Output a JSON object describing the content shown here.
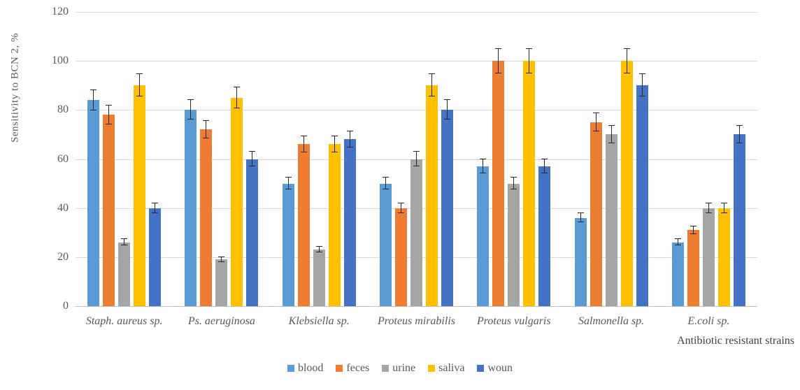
{
  "chart_data": {
    "type": "bar",
    "title": "",
    "ylabel": "Sensitivity to BCN  2, %",
    "xlabel": "Antibiotic resistant strains",
    "ylim": [
      0,
      120
    ],
    "yticks": [
      0,
      20,
      40,
      60,
      80,
      100,
      120
    ],
    "grid": true,
    "legend_position": "bottom",
    "error_bars": {
      "type": "percent",
      "value": 5
    },
    "categories": [
      "Staph. aureus sp.",
      "Ps. aeruginosa",
      "Klebsiella  sp.",
      "Proteus  mirabilis",
      "Proteus  vulgaris",
      "Salmonella sp.",
      "E.coli sp."
    ],
    "series": [
      {
        "name": "blood",
        "color": "#5B9BD5",
        "values": [
          84,
          80,
          50,
          50,
          57,
          36,
          26
        ]
      },
      {
        "name": "feces",
        "color": "#ED7D31",
        "values": [
          78,
          72,
          66,
          40,
          100,
          75,
          31
        ]
      },
      {
        "name": "urine",
        "color": "#A5A5A5",
        "values": [
          26,
          19,
          23,
          60,
          50,
          70,
          40
        ]
      },
      {
        "name": "saliva",
        "color": "#FFC000",
        "values": [
          90,
          85,
          66,
          90,
          100,
          100,
          40
        ]
      },
      {
        "name": "woun",
        "color": "#4472C4",
        "values": [
          40,
          60,
          68,
          80,
          57,
          90,
          70
        ]
      }
    ],
    "style": {
      "gridline_color": "#D9D9D9",
      "axis_line_color": "#BFBFBF",
      "error_bar_color": "#262626",
      "text_color": "#595959"
    }
  }
}
